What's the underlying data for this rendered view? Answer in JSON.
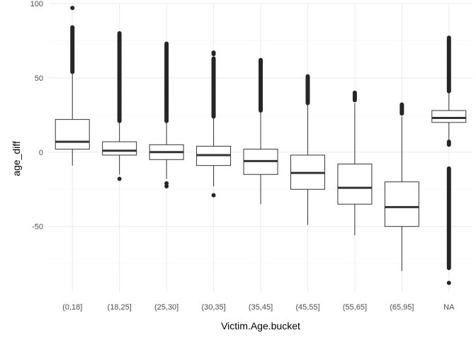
{
  "chart_data": {
    "type": "boxplot",
    "title": "",
    "xlabel": "Victim.Age.bucket",
    "ylabel": "age_diff",
    "ylim": [
      -94,
      100
    ],
    "y_ticks": [
      100,
      50,
      0,
      -50
    ],
    "grid": "major and minor, light gray",
    "legend": "none",
    "categories": [
      "(0,18]",
      "(18,25]",
      "(25,30]",
      "(30,35]",
      "(35,45]",
      "(45,55]",
      "(55,65]",
      "(65,95]",
      "NA"
    ],
    "boxes": [
      {
        "category": "(0,18]",
        "q1": 2,
        "median": 7,
        "q3": 22,
        "whisker_low": -9,
        "whisker_high": 53,
        "outliers_high": {
          "from": 54,
          "to": 84,
          "extra": [
            97
          ]
        },
        "outliers_low": {
          "from": null,
          "to": null,
          "extra": []
        }
      },
      {
        "category": "(18,25]",
        "q1": -2,
        "median": 1,
        "q3": 7,
        "whisker_low": -15,
        "whisker_high": 20,
        "outliers_high": {
          "from": 21,
          "to": 80,
          "extra": []
        },
        "outliers_low": {
          "from": null,
          "to": null,
          "extra": [
            -18
          ]
        }
      },
      {
        "category": "(25,30]",
        "q1": -5,
        "median": 0,
        "q3": 5,
        "whisker_low": -18,
        "whisker_high": 20,
        "outliers_high": {
          "from": 21,
          "to": 73,
          "extra": []
        },
        "outliers_low": {
          "from": null,
          "to": null,
          "extra": [
            -21,
            -23
          ]
        }
      },
      {
        "category": "(30,35]",
        "q1": -9,
        "median": -2,
        "q3": 4,
        "whisker_low": -23,
        "whisker_high": 23,
        "outliers_high": {
          "from": 24,
          "to": 63,
          "extra": [
            66,
            67
          ]
        },
        "outliers_low": {
          "from": null,
          "to": null,
          "extra": [
            -29
          ]
        }
      },
      {
        "category": "(35,45]",
        "q1": -15,
        "median": -6,
        "q3": 2,
        "whisker_low": -35,
        "whisker_high": 27,
        "outliers_high": {
          "from": 28,
          "to": 62,
          "extra": []
        },
        "outliers_low": {
          "from": null,
          "to": null,
          "extra": []
        }
      },
      {
        "category": "(45,55]",
        "q1": -25,
        "median": -14,
        "q3": -2,
        "whisker_low": -49,
        "whisker_high": 32,
        "outliers_high": {
          "from": 33,
          "to": 51,
          "extra": []
        },
        "outliers_low": {
          "from": null,
          "to": null,
          "extra": []
        }
      },
      {
        "category": "(55,65]",
        "q1": -35,
        "median": -24,
        "q3": -8,
        "whisker_low": -56,
        "whisker_high": 33,
        "outliers_high": {
          "from": 35,
          "to": 40,
          "extra": []
        },
        "outliers_low": {
          "from": null,
          "to": null,
          "extra": []
        }
      },
      {
        "category": "(65,95]",
        "q1": -50,
        "median": -37,
        "q3": -20,
        "whisker_low": -80,
        "whisker_high": 24,
        "outliers_high": {
          "from": 26,
          "to": 32,
          "extra": []
        },
        "outliers_low": {
          "from": null,
          "to": null,
          "extra": []
        }
      },
      {
        "category": "NA",
        "q1": 20,
        "median": 23,
        "q3": 28,
        "whisker_low": 8,
        "whisker_high": 40,
        "outliers_high": {
          "from": 41,
          "to": 77,
          "extra": []
        },
        "outliers_low": {
          "from": -78,
          "to": -11,
          "extra": [
            -88,
            5,
            6,
            7
          ]
        }
      }
    ],
    "colors": {
      "box_fill": "#ffffff",
      "box_line": "#333333",
      "outlier": "#262626",
      "grid": "#ebebeb",
      "grid_minor": "#f5f5f5"
    }
  }
}
